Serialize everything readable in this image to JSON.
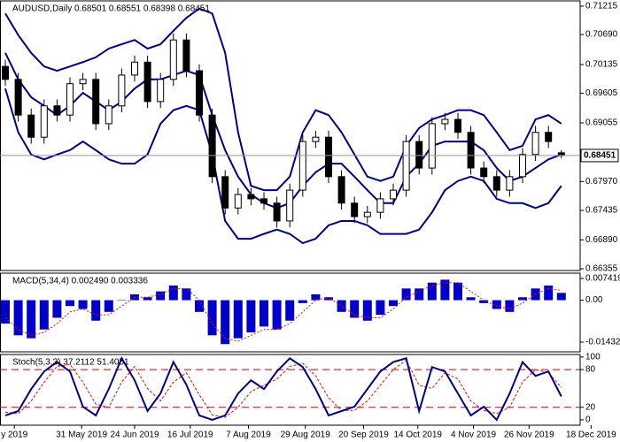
{
  "chart_data": [
    {
      "type": "candlestick",
      "title": "AUDUSD,Daily 0.68501 0.68551 0.68398 0.68451",
      "open": [
        0.701,
        0.6986,
        0.692,
        0.6879,
        0.6937,
        0.692,
        0.6978,
        0.6986,
        0.6904,
        0.6937,
        0.6994,
        0.7018,
        0.6945,
        0.6986,
        0.7059,
        0.7002,
        0.692,
        0.6806,
        0.6748,
        0.6773,
        0.6765,
        0.6757,
        0.6724,
        0.6781,
        0.6871,
        0.6879,
        0.6806,
        0.6757,
        0.6732,
        0.674,
        0.6765,
        0.6781,
        0.6871,
        0.6822,
        0.6904,
        0.6912,
        0.6888,
        0.6822,
        0.6806,
        0.6781,
        0.6806,
        0.6847,
        0.6888,
        0.68501
      ],
      "high": [
        0.7022,
        0.6998,
        0.6932,
        0.6949,
        0.6949,
        0.699,
        0.6998,
        0.6998,
        0.6949,
        0.7006,
        0.703,
        0.703,
        0.6998,
        0.7071,
        0.7071,
        0.7014,
        0.6932,
        0.6818,
        0.6785,
        0.6785,
        0.6777,
        0.6769,
        0.6793,
        0.6883,
        0.6891,
        0.6891,
        0.6818,
        0.6769,
        0.6752,
        0.6777,
        0.6793,
        0.6883,
        0.6883,
        0.6916,
        0.6924,
        0.6924,
        0.69,
        0.6834,
        0.6818,
        0.6818,
        0.6859,
        0.69,
        0.69,
        0.68551
      ],
      "low": [
        0.6974,
        0.6908,
        0.6867,
        0.6867,
        0.6908,
        0.6908,
        0.6966,
        0.6892,
        0.6892,
        0.6925,
        0.6982,
        0.6933,
        0.6933,
        0.6974,
        0.699,
        0.6908,
        0.6794,
        0.6736,
        0.6736,
        0.6753,
        0.6745,
        0.6712,
        0.6712,
        0.6769,
        0.6859,
        0.6794,
        0.6745,
        0.672,
        0.672,
        0.6728,
        0.6753,
        0.6769,
        0.681,
        0.681,
        0.6892,
        0.6876,
        0.681,
        0.6794,
        0.6769,
        0.6769,
        0.6794,
        0.6835,
        0.6859,
        0.68398
      ],
      "close": [
        0.6986,
        0.692,
        0.6879,
        0.6937,
        0.692,
        0.6978,
        0.6986,
        0.6904,
        0.6937,
        0.6994,
        0.7018,
        0.6945,
        0.6986,
        0.7059,
        0.7002,
        0.692,
        0.6806,
        0.6748,
        0.6773,
        0.6765,
        0.6757,
        0.6724,
        0.6781,
        0.6871,
        0.6879,
        0.6806,
        0.6757,
        0.6732,
        0.674,
        0.6765,
        0.6781,
        0.6871,
        0.6822,
        0.6904,
        0.6912,
        0.6888,
        0.6822,
        0.6806,
        0.6781,
        0.6806,
        0.6847,
        0.6888,
        0.6871,
        0.68451
      ],
      "candle_color": "#000000",
      "bollinger": {
        "color": "#00008b",
        "upper": [
          0.7108,
          0.7068,
          0.7035,
          0.701,
          0.7002,
          0.701,
          0.7018,
          0.7027,
          0.7043,
          0.7051,
          0.7059,
          0.7043,
          0.7051,
          0.7076,
          0.71,
          0.7117,
          0.7108,
          0.7035,
          0.6888,
          0.6789,
          0.6781,
          0.6781,
          0.6806,
          0.6888,
          0.6929,
          0.692,
          0.6888,
          0.6847,
          0.6806,
          0.6798,
          0.6806,
          0.6863,
          0.6896,
          0.6912,
          0.692,
          0.6929,
          0.6929,
          0.692,
          0.6888,
          0.6855,
          0.6863,
          0.6912,
          0.692,
          0.6904
        ],
        "middle": [
          0.7035,
          0.6986,
          0.6953,
          0.6937,
          0.692,
          0.6937,
          0.6961,
          0.6945,
          0.6929,
          0.6945,
          0.6969,
          0.6986,
          0.6986,
          0.6994,
          0.7002,
          0.6994,
          0.692,
          0.6855,
          0.6806,
          0.6773,
          0.6757,
          0.6748,
          0.6757,
          0.6789,
          0.6814,
          0.683,
          0.683,
          0.6806,
          0.6781,
          0.6757,
          0.6757,
          0.6806,
          0.683,
          0.6863,
          0.6871,
          0.6871,
          0.6871,
          0.6855,
          0.6822,
          0.6798,
          0.6806,
          0.6822,
          0.6838,
          0.6847
        ],
        "lower": [
          0.6969,
          0.6888,
          0.6847,
          0.6838,
          0.6847,
          0.6855,
          0.6871,
          0.6855,
          0.6838,
          0.683,
          0.683,
          0.6847,
          0.6904,
          0.6929,
          0.6937,
          0.6929,
          0.6847,
          0.6724,
          0.6691,
          0.6691,
          0.67,
          0.6708,
          0.67,
          0.6683,
          0.6691,
          0.6716,
          0.6724,
          0.6724,
          0.6716,
          0.67,
          0.67,
          0.67,
          0.6708,
          0.674,
          0.6781,
          0.6798,
          0.6806,
          0.6798,
          0.6765,
          0.6757,
          0.6757,
          0.6748,
          0.6757,
          0.6789
        ]
      },
      "current_price": {
        "value": 0.68451,
        "label": "0.68451"
      },
      "ylim": [
        0.66323,
        0.71313
      ],
      "yticks": [
        0.71215,
        {
          "value": 0.7069,
          "label": "0.70690"
        },
        0.70135,
        0.69605,
        0.69055,
        {
          "value": 0.6797,
          "label": "0.67970"
        },
        0.67435,
        {
          "value": 0.6689,
          "label": "0.66890"
        },
        0.66355
      ]
    },
    {
      "type": "macd",
      "title": "MACD(5,34,4) 0.002490 0.003336",
      "histogram": [
        -0.008,
        -0.012,
        -0.013,
        -0.01,
        -0.006,
        -0.002,
        -0.003,
        -0.007,
        -0.004,
        0.0,
        0.002,
        0.001,
        0.003,
        0.005,
        0.004,
        -0.004,
        -0.012,
        -0.015,
        -0.013,
        -0.011,
        -0.009,
        -0.01,
        -0.007,
        -0.001,
        0.002,
        0.001,
        -0.004,
        -0.006,
        -0.007,
        -0.005,
        -0.002,
        0.004,
        0.004,
        0.006,
        0.007,
        0.006,
        0.001,
        -0.001,
        -0.003,
        -0.004,
        0.001,
        0.004,
        0.005,
        0.00249
      ],
      "signal": [
        -0.006,
        -0.01,
        -0.012,
        -0.011,
        -0.008,
        -0.004,
        -0.003,
        -0.005,
        -0.005,
        -0.002,
        0.001,
        0.001,
        0.002,
        0.004,
        0.004,
        0.0,
        -0.008,
        -0.013,
        -0.014,
        -0.012,
        -0.01,
        -0.01,
        -0.008,
        -0.004,
        0.0,
        0.001,
        -0.002,
        -0.005,
        -0.006,
        -0.006,
        -0.003,
        0.001,
        0.003,
        0.005,
        0.006,
        0.006,
        0.003,
        0.0,
        -0.002,
        -0.003,
        -0.001,
        0.002,
        0.004,
        0.003336
      ],
      "histogram_color": "#0000cc",
      "signal_color": "#ff0000",
      "ylim": [
        -0.01764,
        0.00923
      ],
      "yticks": [
        0.007419,
        {
          "value": 0,
          "label": "0.00"
        },
        -0.014322
      ]
    },
    {
      "type": "stochastic",
      "title": "Stoch(5,3,3) 37.2112 51.4051",
      "main": [
        7,
        14,
        49,
        77,
        92,
        77,
        21,
        7,
        49,
        98,
        63,
        14,
        42,
        92,
        56,
        7,
        0,
        7,
        42,
        63,
        49,
        77,
        98,
        84,
        49,
        7,
        14,
        21,
        49,
        77,
        92,
        98,
        14,
        84,
        77,
        42,
        7,
        21,
        0,
        42,
        92,
        70,
        77,
        37.2112
      ],
      "signal": [
        12,
        10,
        30,
        60,
        85,
        88,
        60,
        25,
        20,
        60,
        85,
        50,
        30,
        60,
        75,
        40,
        8,
        4,
        20,
        45,
        55,
        65,
        85,
        90,
        70,
        35,
        15,
        15,
        30,
        55,
        80,
        95,
        55,
        50,
        75,
        65,
        30,
        15,
        10,
        20,
        60,
        80,
        75,
        51.4051
      ],
      "main_color": "#00008b",
      "signal_color": "#ff0000",
      "level_color": "#cc0000",
      "levels": [
        80,
        20
      ],
      "ylim": [
        -8.5,
        104
      ],
      "yticks": [
        100,
        80,
        20,
        0
      ],
      "xticks": [
        {
          "value": 0.7,
          "label": "y 2019"
        },
        {
          "value": 5.9,
          "label": "31 May 2019"
        },
        {
          "value": 10,
          "label": "24 Jun 2019"
        },
        {
          "value": 14.3,
          "label": "16 Jul 2019"
        },
        {
          "value": 18.8,
          "label": "7 Aug 2019"
        },
        {
          "value": 23.2,
          "label": "29 Aug 2019"
        },
        {
          "value": 27.7,
          "label": "20 Sep 2019"
        },
        {
          "value": 31.9,
          "label": "14 Oct 2019"
        },
        {
          "value": 36.2,
          "label": "4 Nov 2019"
        },
        {
          "value": 40.5,
          "label": "26 Nov 2019"
        },
        {
          "value": 45.3,
          "label": "18 Dec 2019"
        }
      ]
    }
  ]
}
